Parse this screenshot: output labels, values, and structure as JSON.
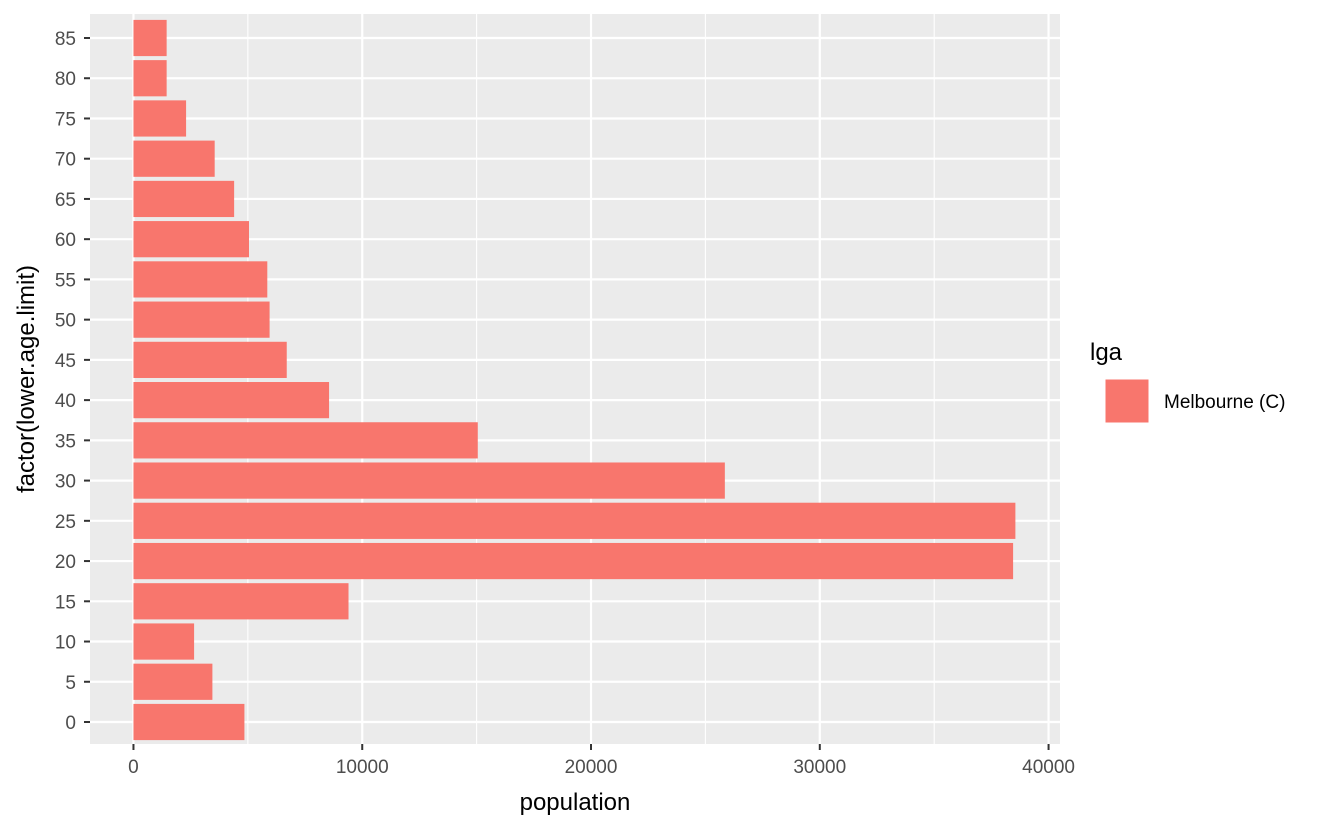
{
  "chart_data": {
    "type": "bar",
    "orientation": "horizontal",
    "xlabel": "population",
    "ylabel": "factor(lower.age.limit)",
    "categories": [
      "0",
      "5",
      "10",
      "15",
      "20",
      "25",
      "30",
      "35",
      "40",
      "45",
      "50",
      "55",
      "60",
      "65",
      "70",
      "75",
      "80",
      "85"
    ],
    "series": [
      {
        "name": "Melbourne (C)",
        "color": "#F8766D",
        "values": [
          4850,
          3450,
          2650,
          9400,
          38450,
          38550,
          25850,
          15050,
          8550,
          6700,
          5950,
          5850,
          5050,
          4400,
          3550,
          2300,
          1450,
          1450
        ]
      }
    ],
    "xlim": [
      -1900,
      40500
    ],
    "xticks": [
      0,
      10000,
      20000,
      30000,
      40000
    ],
    "xtick_labels": [
      "0",
      "10000",
      "20000",
      "30000",
      "40000"
    ],
    "grid": true,
    "panel_background": "#EBEBEB",
    "grid_color": "#FFFFFF",
    "legend": {
      "title": "lga",
      "placement": "right",
      "entries": [
        "Melbourne (C)"
      ]
    }
  }
}
